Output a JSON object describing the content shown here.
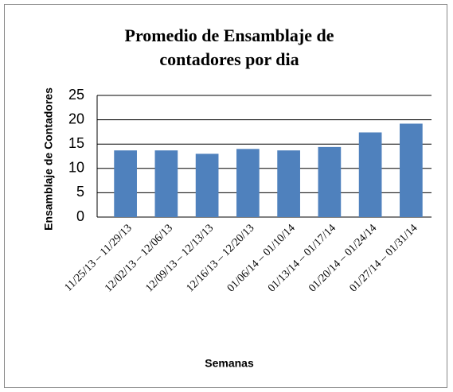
{
  "chart_data": {
    "type": "bar",
    "title": "Promedio de Ensamblaje de contadores por dia",
    "x_label": "Semanas",
    "y_label": "Ensamblaje de Contadores",
    "categories": [
      "11/25/13 – 11/29/13",
      "12/02/13 – 12/06/13",
      "12/09/13 – 12/13/13",
      "12/16/13 – 12/20/13",
      "01/06/14 – 01/10/14",
      "01/13/14 – 01/17/14",
      "01/20/14 – 01/24/14",
      "01/27/14 – 01/31/14"
    ],
    "values": [
      13.7,
      13.7,
      13.0,
      14.0,
      13.7,
      14.4,
      17.4,
      19.2
    ],
    "color": "#4f81bd",
    "ylim": [
      0,
      25
    ],
    "yticks": [
      0,
      5,
      10,
      15,
      20,
      25
    ],
    "grid": true
  }
}
